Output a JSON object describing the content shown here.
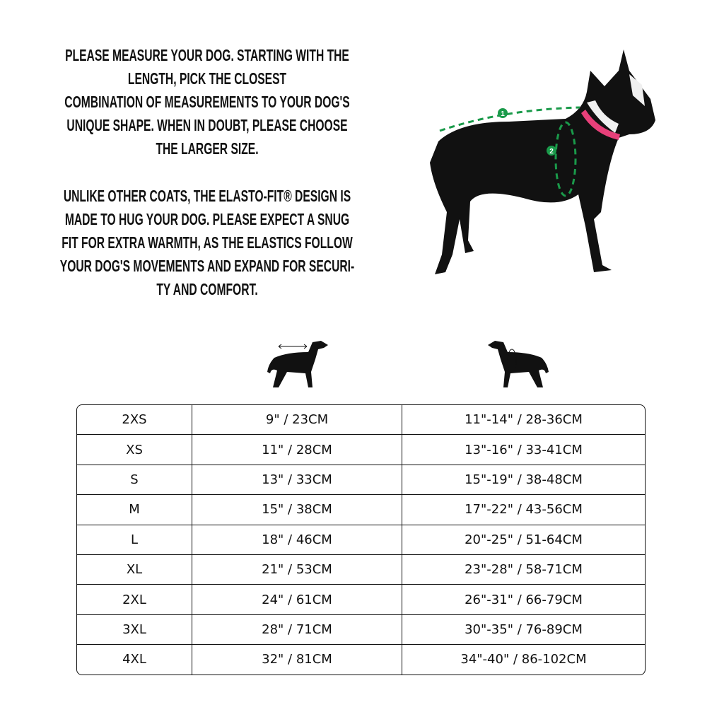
{
  "instructions": {
    "paragraph1": [
      "PLEASE MEASURE YOUR DOG. STARTING WITH THE",
      "LENGTH, PICK THE CLOSEST",
      "COMBINATION OF MEASUREMENTS TO YOUR DOG'S",
      "UNIQUE SHAPE. WHEN IN DOUBT, PLEASE CHOOSE",
      "THE LARGER SIZE."
    ],
    "paragraph2": [
      "UNLIKE OTHER COATS, THE ELASTO-FIT® DESIGN IS",
      "MADE TO HUG YOUR DOG. PLEASE EXPECT A SNUG",
      "FIT FOR EXTRA WARMTH, AS THE ELASTICS FOLLOW",
      "YOUR DOG'S MOVEMENTS AND EXPAND FOR SECURI-",
      "TY AND COMFORT."
    ]
  },
  "photo": {
    "markers": [
      "1",
      "2"
    ],
    "measure_color": "#1a9a4a",
    "collar_color": "#e8407a"
  },
  "column_icons": [
    "dog-length-icon",
    "dog-chest-girth-icon"
  ],
  "table": {
    "rows": [
      [
        "2XS",
        "9\" / 23CM",
        "11\"-14\" / 28-36CM"
      ],
      [
        "XS",
        "11\" / 28CM",
        "13\"-16\" / 33-41CM"
      ],
      [
        "S",
        "13\" / 33CM",
        "15\"-19\" / 38-48CM"
      ],
      [
        "M",
        "15\" / 38CM",
        "17\"-22\" / 43-56CM"
      ],
      [
        "L",
        "18\" / 46CM",
        "20\"-25\" / 51-64CM"
      ],
      [
        "XL",
        "21\" / 53CM",
        "23\"-28\" / 58-71CM"
      ],
      [
        "2XL",
        "24\" / 61CM",
        "26\"-31\" / 66-79CM"
      ],
      [
        "3XL",
        "28\" / 71CM",
        "30\"-35\" / 76-89CM"
      ],
      [
        "4XL",
        "32\" / 81CM",
        "34\"-40\" / 86-102CM"
      ]
    ]
  }
}
